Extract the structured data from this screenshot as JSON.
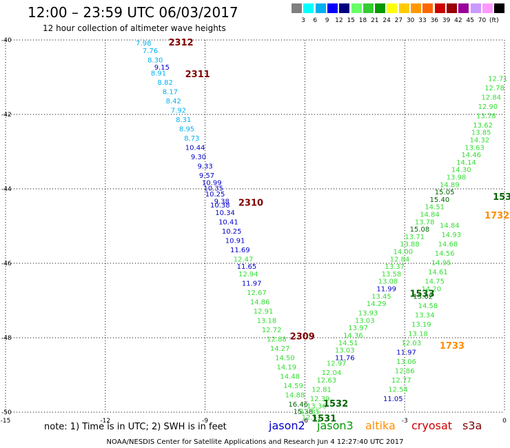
{
  "header": {
    "title": "12:00  –  23:59 UTC 06/03/2017",
    "subtitle": "12 hour collection of altimeter wave heights"
  },
  "color_scale": {
    "colors": [
      "#7f7f7f",
      "#00ffff",
      "#00b0f0",
      "#0000ff",
      "#00007f",
      "#66ff66",
      "#33cc33",
      "#009900",
      "#ffff00",
      "#ffcc00",
      "#ff9900",
      "#ff6600",
      "#cc0000",
      "#990000",
      "#990099",
      "#cc99ff",
      "#ff99ff",
      "#000000"
    ],
    "labels": [
      "3",
      "6",
      "9",
      "12",
      "15",
      "18",
      "21",
      "24",
      "27",
      "30",
      "33",
      "36",
      "39",
      "42",
      "45",
      "70",
      "(ft)"
    ]
  },
  "chart_data": {
    "type": "scatter",
    "xlim": [
      -15,
      0
    ],
    "ylim": [
      -50,
      -40
    ],
    "xticks": [
      "-15",
      "-12",
      "-9",
      "-6",
      "-3",
      "0"
    ],
    "yticks": [
      "-40",
      "-42",
      "-44",
      "-46",
      "-48",
      "-50"
    ],
    "grid": true,
    "colors": {
      "light_blue": "#00b0f0",
      "dark_blue": "#0000c8",
      "green": "#33dd33",
      "dark_red": "#800000",
      "dark_green": "#006400",
      "orange": "#ff8c00"
    },
    "labels": [
      {
        "text": "7.98",
        "x": -10.85,
        "y": -40.15,
        "c": "light_blue"
      },
      {
        "text": "7.76",
        "x": -10.65,
        "y": -40.35,
        "c": "light_blue"
      },
      {
        "text": "8.30",
        "x": -10.5,
        "y": -40.6,
        "c": "light_blue"
      },
      {
        "text": "8.91",
        "x": -10.4,
        "y": -40.95,
        "c": "light_blue"
      },
      {
        "text": "9.15",
        "x": -10.3,
        "y": -40.8,
        "c": "dark_blue"
      },
      {
        "text": "8.82",
        "x": -10.2,
        "y": -41.2,
        "c": "light_blue"
      },
      {
        "text": "8.17",
        "x": -10.05,
        "y": -41.45,
        "c": "light_blue"
      },
      {
        "text": "8.42",
        "x": -9.95,
        "y": -41.7,
        "c": "light_blue"
      },
      {
        "text": "7.92",
        "x": -9.8,
        "y": -41.95,
        "c": "light_blue"
      },
      {
        "text": "8.31",
        "x": -9.65,
        "y": -42.2,
        "c": "light_blue"
      },
      {
        "text": "8.95",
        "x": -9.55,
        "y": -42.45,
        "c": "light_blue"
      },
      {
        "text": "8.73",
        "x": -9.4,
        "y": -42.7,
        "c": "light_blue"
      },
      {
        "text": "10.44",
        "x": -9.3,
        "y": -42.95,
        "c": "dark_blue"
      },
      {
        "text": "9.30",
        "x": -9.2,
        "y": -43.2,
        "c": "dark_blue"
      },
      {
        "text": "9.33",
        "x": -9.0,
        "y": -43.45,
        "c": "dark_blue"
      },
      {
        "text": "9.57",
        "x": -8.95,
        "y": -43.7,
        "c": "dark_blue"
      },
      {
        "text": "10.99",
        "x": -8.8,
        "y": -43.9,
        "c": "dark_blue"
      },
      {
        "text": "10.35",
        "x": -8.75,
        "y": -44.05,
        "c": "dark_blue"
      },
      {
        "text": "10.25",
        "x": -8.7,
        "y": -44.2,
        "c": "dark_blue"
      },
      {
        "text": "9.38",
        "x": -8.5,
        "y": -44.4,
        "c": "dark_blue"
      },
      {
        "text": "10.38",
        "x": -8.55,
        "y": -44.5,
        "c": "dark_blue"
      },
      {
        "text": "10.34",
        "x": -8.4,
        "y": -44.7,
        "c": "dark_blue"
      },
      {
        "text": "10.41",
        "x": -8.3,
        "y": -44.95,
        "c": "dark_blue"
      },
      {
        "text": "10.25",
        "x": -8.2,
        "y": -45.2,
        "c": "dark_blue"
      },
      {
        "text": "10.91",
        "x": -8.1,
        "y": -45.45,
        "c": "dark_blue"
      },
      {
        "text": "11.69",
        "x": -7.95,
        "y": -45.7,
        "c": "dark_blue"
      },
      {
        "text": "12.47",
        "x": -7.85,
        "y": -45.95,
        "c": "green"
      },
      {
        "text": "11.65",
        "x": -7.75,
        "y": -46.15,
        "c": "dark_blue"
      },
      {
        "text": "12.94",
        "x": -7.7,
        "y": -46.35,
        "c": "green"
      },
      {
        "text": "11.97",
        "x": -7.6,
        "y": -46.6,
        "c": "dark_blue"
      },
      {
        "text": "12.67",
        "x": -7.45,
        "y": -46.85,
        "c": "green"
      },
      {
        "text": "14.86",
        "x": -7.35,
        "y": -47.1,
        "c": "green"
      },
      {
        "text": "12.91",
        "x": -7.25,
        "y": -47.35,
        "c": "green"
      },
      {
        "text": "13.18",
        "x": -7.15,
        "y": -47.6,
        "c": "green"
      },
      {
        "text": "12.72",
        "x": -7.0,
        "y": -47.85,
        "c": "green"
      },
      {
        "text": "12.88",
        "x": -6.85,
        "y": -48.1,
        "c": "green"
      },
      {
        "text": "14.27",
        "x": -6.75,
        "y": -48.35,
        "c": "green"
      },
      {
        "text": "14.50",
        "x": -6.6,
        "y": -48.6,
        "c": "green"
      },
      {
        "text": "14.19",
        "x": -6.55,
        "y": -48.85,
        "c": "green"
      },
      {
        "text": "14.48",
        "x": -6.45,
        "y": -49.1,
        "c": "green"
      },
      {
        "text": "14.59",
        "x": -6.35,
        "y": -49.35,
        "c": "green"
      },
      {
        "text": "14.88",
        "x": -6.3,
        "y": -49.6,
        "c": "green"
      },
      {
        "text": "16.46",
        "x": -6.2,
        "y": -49.85,
        "c": "dark_green"
      },
      {
        "text": "15.38",
        "x": -6.05,
        "y": -50.05,
        "c": "dark_green"
      },
      {
        "text": "12.85",
        "x": -5.85,
        "y": -50.05,
        "c": "green"
      },
      {
        "text": "13.36",
        "x": -5.65,
        "y": -49.9,
        "c": "green"
      },
      {
        "text": "12.39",
        "x": -5.55,
        "y": -49.7,
        "c": "green"
      },
      {
        "text": "12.51",
        "x": -5.8,
        "y": -50.2,
        "c": "green"
      },
      {
        "text": "12.81",
        "x": -5.5,
        "y": -49.45,
        "c": "green"
      },
      {
        "text": "12.63",
        "x": -5.35,
        "y": -49.2,
        "c": "green"
      },
      {
        "text": "12.04",
        "x": -5.2,
        "y": -49.0,
        "c": "green"
      },
      {
        "text": "12.97",
        "x": -5.05,
        "y": -48.75,
        "c": "green"
      },
      {
        "text": "11.76",
        "x": -4.8,
        "y": -48.6,
        "c": "dark_blue"
      },
      {
        "text": "13.03",
        "x": -4.8,
        "y": -48.4,
        "c": "green"
      },
      {
        "text": "14.51",
        "x": -4.7,
        "y": -48.2,
        "c": "green"
      },
      {
        "text": "14.36",
        "x": -4.55,
        "y": -48.0,
        "c": "green"
      },
      {
        "text": "13.97",
        "x": -4.4,
        "y": -47.8,
        "c": "green"
      },
      {
        "text": "13.03",
        "x": -4.2,
        "y": -47.6,
        "c": "green"
      },
      {
        "text": "13.93",
        "x": -4.1,
        "y": -47.4,
        "c": "green"
      },
      {
        "text": "14.29",
        "x": -3.85,
        "y": -47.15,
        "c": "green"
      },
      {
        "text": "13.45",
        "x": -3.7,
        "y": -46.95,
        "c": "green"
      },
      {
        "text": "11.99",
        "x": -3.55,
        "y": -46.75,
        "c": "dark_blue"
      },
      {
        "text": "13.08",
        "x": -3.5,
        "y": -46.55,
        "c": "green"
      },
      {
        "text": "13.58",
        "x": -3.4,
        "y": -46.35,
        "c": "green"
      },
      {
        "text": "13.37",
        "x": -3.3,
        "y": -46.15,
        "c": "green"
      },
      {
        "text": "12.84",
        "x": -3.15,
        "y": -45.95,
        "c": "green"
      },
      {
        "text": "14.00",
        "x": -3.05,
        "y": -45.75,
        "c": "green"
      },
      {
        "text": "13.88",
        "x": -2.85,
        "y": -45.55,
        "c": "green"
      },
      {
        "text": "13.71",
        "x": -2.7,
        "y": -45.35,
        "c": "green"
      },
      {
        "text": "15.08",
        "x": -2.55,
        "y": -45.15,
        "c": "dark_green"
      },
      {
        "text": "13.78",
        "x": -2.4,
        "y": -44.95,
        "c": "green"
      },
      {
        "text": "14.84",
        "x": -2.25,
        "y": -44.75,
        "c": "green"
      },
      {
        "text": "14.51",
        "x": -2.1,
        "y": -44.55,
        "c": "green"
      },
      {
        "text": "15.40",
        "x": -1.95,
        "y": -44.35,
        "c": "dark_green"
      },
      {
        "text": "15.05",
        "x": -1.8,
        "y": -44.15,
        "c": "dark_green"
      },
      {
        "text": "14.89",
        "x": -1.65,
        "y": -43.95,
        "c": "green"
      },
      {
        "text": "13.98",
        "x": -1.45,
        "y": -43.75,
        "c": "green"
      },
      {
        "text": "14.30",
        "x": -1.3,
        "y": -43.55,
        "c": "green"
      },
      {
        "text": "14.14",
        "x": -1.15,
        "y": -43.35,
        "c": "green"
      },
      {
        "text": "14.46",
        "x": -1.0,
        "y": -43.15,
        "c": "green"
      },
      {
        "text": "13.63",
        "x": -0.9,
        "y": -42.95,
        "c": "green"
      },
      {
        "text": "14.32",
        "x": -0.75,
        "y": -42.75,
        "c": "green"
      },
      {
        "text": "13.85",
        "x": -0.7,
        "y": -42.55,
        "c": "green"
      },
      {
        "text": "13.62",
        "x": -0.65,
        "y": -42.35,
        "c": "green"
      },
      {
        "text": "13.78",
        "x": -0.55,
        "y": -42.1,
        "c": "green"
      },
      {
        "text": "12.90",
        "x": -0.5,
        "y": -41.85,
        "c": "green"
      },
      {
        "text": "12.84",
        "x": -0.4,
        "y": -41.6,
        "c": "green"
      },
      {
        "text": "12.78",
        "x": -0.3,
        "y": -41.35,
        "c": "green"
      },
      {
        "text": "12.71",
        "x": -0.2,
        "y": -41.1,
        "c": "green"
      },
      {
        "text": "15.02",
        "x": -2.45,
        "y": -46.95,
        "c": "dark_green"
      },
      {
        "text": "14.58",
        "x": -2.3,
        "y": -47.2,
        "c": "green"
      },
      {
        "text": "13.34",
        "x": -2.4,
        "y": -47.45,
        "c": "green"
      },
      {
        "text": "13.19",
        "x": -2.5,
        "y": -47.7,
        "c": "green"
      },
      {
        "text": "13.18",
        "x": -2.6,
        "y": -47.95,
        "c": "green"
      },
      {
        "text": "12.03",
        "x": -2.8,
        "y": -48.2,
        "c": "green"
      },
      {
        "text": "11.97",
        "x": -2.95,
        "y": -48.45,
        "c": "dark_blue"
      },
      {
        "text": "13.06",
        "x": -2.95,
        "y": -48.7,
        "c": "green"
      },
      {
        "text": "12.86",
        "x": -3.0,
        "y": -48.95,
        "c": "green"
      },
      {
        "text": "12.77",
        "x": -3.1,
        "y": -49.2,
        "c": "green"
      },
      {
        "text": "12.54",
        "x": -3.2,
        "y": -49.45,
        "c": "green"
      },
      {
        "text": "11.05",
        "x": -3.35,
        "y": -49.7,
        "c": "dark_blue"
      },
      {
        "text": "14.20",
        "x": -2.2,
        "y": -46.75,
        "c": "green"
      },
      {
        "text": "14.75",
        "x": -2.1,
        "y": -46.55,
        "c": "green"
      },
      {
        "text": "14.61",
        "x": -2.0,
        "y": -46.3,
        "c": "green"
      },
      {
        "text": "14.95",
        "x": -1.9,
        "y": -46.05,
        "c": "green"
      },
      {
        "text": "14.56",
        "x": -1.8,
        "y": -45.8,
        "c": "green"
      },
      {
        "text": "14.68",
        "x": -1.7,
        "y": -45.55,
        "c": "green"
      },
      {
        "text": "14.93",
        "x": -1.6,
        "y": -45.3,
        "c": "green"
      },
      {
        "text": "14.84",
        "x": -1.65,
        "y": -45.05,
        "c": "green"
      }
    ],
    "track_labels": [
      {
        "text": "2312",
        "x": -10.1,
        "y": -40.15,
        "c": "dark_red"
      },
      {
        "text": "2311",
        "x": -9.6,
        "y": -41.0,
        "c": "dark_red"
      },
      {
        "text": "2310",
        "x": -8.0,
        "y": -44.45,
        "c": "dark_red"
      },
      {
        "text": "2309",
        "x": -6.45,
        "y": -48.05,
        "c": "dark_red"
      },
      {
        "text": "1532",
        "x": -5.45,
        "y": -49.85,
        "c": "dark_green"
      },
      {
        "text": "1531",
        "x": -5.8,
        "y": -50.25,
        "c": "dark_green"
      },
      {
        "text": "1533",
        "x": -2.85,
        "y": -46.9,
        "c": "dark_green"
      },
      {
        "text": "1733",
        "x": -1.95,
        "y": -48.3,
        "c": "orange"
      },
      {
        "text": "1732",
        "x": -0.6,
        "y": -44.8,
        "c": "orange"
      },
      {
        "text": "153",
        "x": -0.35,
        "y": -44.3,
        "c": "dark_green"
      }
    ]
  },
  "footer": {
    "note": "note:  1) Time is in UTC;  2) SWH is in feet",
    "satellites": [
      {
        "name": "jason2",
        "color": "#0000c8"
      },
      {
        "name": "jason3",
        "color": "#009900"
      },
      {
        "name": "altika",
        "color": "#ff8c00"
      },
      {
        "name": "cryosat",
        "color": "#cc0000"
      },
      {
        "name": "s3a",
        "color": "#800000"
      }
    ],
    "credit": "NOAA/NESDIS Center for Satellite Applications and Research     Jun  4 12:27:40 UTC 2017"
  }
}
